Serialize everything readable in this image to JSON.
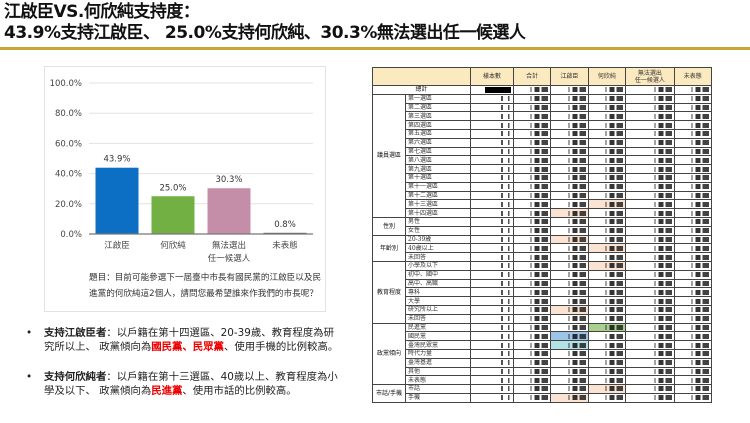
{
  "header": {
    "line1": "江啟臣VS.何欣純支持度：",
    "line2": "43.9%支持江啟臣、 25.0%支持何欣純、30.3%無法選出任一候選人"
  },
  "colors": {
    "rule": "#c9a43a",
    "table_header": "#fbe9bf",
    "peach": "#fbe3d3",
    "green": "#a9d08e",
    "blue": "#9dc3e6",
    "cyan": "#b4e3e6"
  },
  "chart_data": {
    "type": "bar",
    "categories": [
      "江啟臣",
      "何欣純",
      "無法選出\n任一候選人",
      "未表態"
    ],
    "category_lines": [
      [
        "江啟臣"
      ],
      [
        "何欣純"
      ],
      [
        "無法選出",
        "任一候選人"
      ],
      [
        "未表態"
      ]
    ],
    "values": [
      43.9,
      25.0,
      30.3,
      0.8
    ],
    "value_labels": [
      "43.9%",
      "25.0%",
      "30.3%",
      "0.8%"
    ],
    "colors": [
      "#0d6fc4",
      "#72b043",
      "#c48ea8",
      "#666666"
    ],
    "ylim": [
      0,
      100
    ],
    "yticks": [
      "0.0%",
      "20.0%",
      "40.0%",
      "60.0%",
      "80.0%",
      "100.0%"
    ],
    "grid": true
  },
  "question": "題目：目前可能參選下一屆臺中市長有國民黨的江啟臣以及民進黨的何欣純這2個人，請問您最希望誰來作我們的市長呢？",
  "bullets": [
    {
      "lead": "支持江啟臣者",
      "sep": "：",
      "text1": "以戶籍在第十四選區、20-39歲、教育程度為研究所以上、 政黨傾向為",
      "red": "國民黨、民眾黨",
      "text2": "、使用手機的比例較高。"
    },
    {
      "lead": "支持何欣純者",
      "sep": "：",
      "text1": "以戶籍在第十三選區、40歲以上、教育程度為小學及以下、 政黨傾向為",
      "red": "民進黨",
      "text2": "、使用市話的比例較高。"
    }
  ],
  "table": {
    "columns": [
      "樣本數",
      "合計",
      "江啟臣",
      "何欣純",
      "無法選出\n任一候選人",
      "未表態"
    ],
    "total_label": "總計",
    "groups": [
      {
        "name": "議員選區",
        "rows": [
          {
            "label": "第一選區"
          },
          {
            "label": "第二選區"
          },
          {
            "label": "第三選區"
          },
          {
            "label": "第四選區"
          },
          {
            "label": "第五選區"
          },
          {
            "label": "第六選區"
          },
          {
            "label": "第七選區"
          },
          {
            "label": "第八選區"
          },
          {
            "label": "第九選區"
          },
          {
            "label": "第十選區"
          },
          {
            "label": "第十一選區"
          },
          {
            "label": "第十二選區"
          },
          {
            "label": "第十三選區",
            "hl": {
              "col": 3,
              "color": "peach"
            }
          },
          {
            "label": "第十四選區",
            "hl": {
              "col": 2,
              "color": "peach"
            }
          }
        ]
      },
      {
        "name": "性別",
        "rows": [
          {
            "label": "男性"
          },
          {
            "label": "女性"
          }
        ]
      },
      {
        "name": "年齡別",
        "rows": [
          {
            "label": "20-39歲",
            "hl": {
              "col": 2,
              "color": "peach"
            }
          },
          {
            "label": "40歲以上",
            "hl": {
              "col": 3,
              "color": "peach"
            }
          },
          {
            "label": "未回答"
          }
        ]
      },
      {
        "name": "教育程度",
        "rows": [
          {
            "label": "小學及以下",
            "hl": {
              "col": 3,
              "color": "peach"
            }
          },
          {
            "label": "初中、國中"
          },
          {
            "label": "高中、高職"
          },
          {
            "label": "專科"
          },
          {
            "label": "大學"
          },
          {
            "label": "研究所以上",
            "hl": {
              "col": 2,
              "color": "peach"
            }
          },
          {
            "label": "未回答"
          }
        ]
      },
      {
        "name": "政黨傾向",
        "rows": [
          {
            "label": "民進黨",
            "hl": {
              "col": 3,
              "color": "green"
            }
          },
          {
            "label": "國民黨",
            "hl": {
              "col": 2,
              "color": "blue"
            }
          },
          {
            "label": "臺灣民眾黨",
            "hl": {
              "col": 2,
              "color": "cyan"
            }
          },
          {
            "label": "時代力量"
          },
          {
            "label": "臺灣基進"
          },
          {
            "label": "其他"
          },
          {
            "label": "未表態"
          }
        ]
      },
      {
        "name": "市話/手機",
        "rows": [
          {
            "label": "市話",
            "hl": {
              "col": 3,
              "color": "peach"
            }
          },
          {
            "label": "手機",
            "hl": {
              "col": 2,
              "color": "peach"
            }
          }
        ]
      }
    ]
  }
}
